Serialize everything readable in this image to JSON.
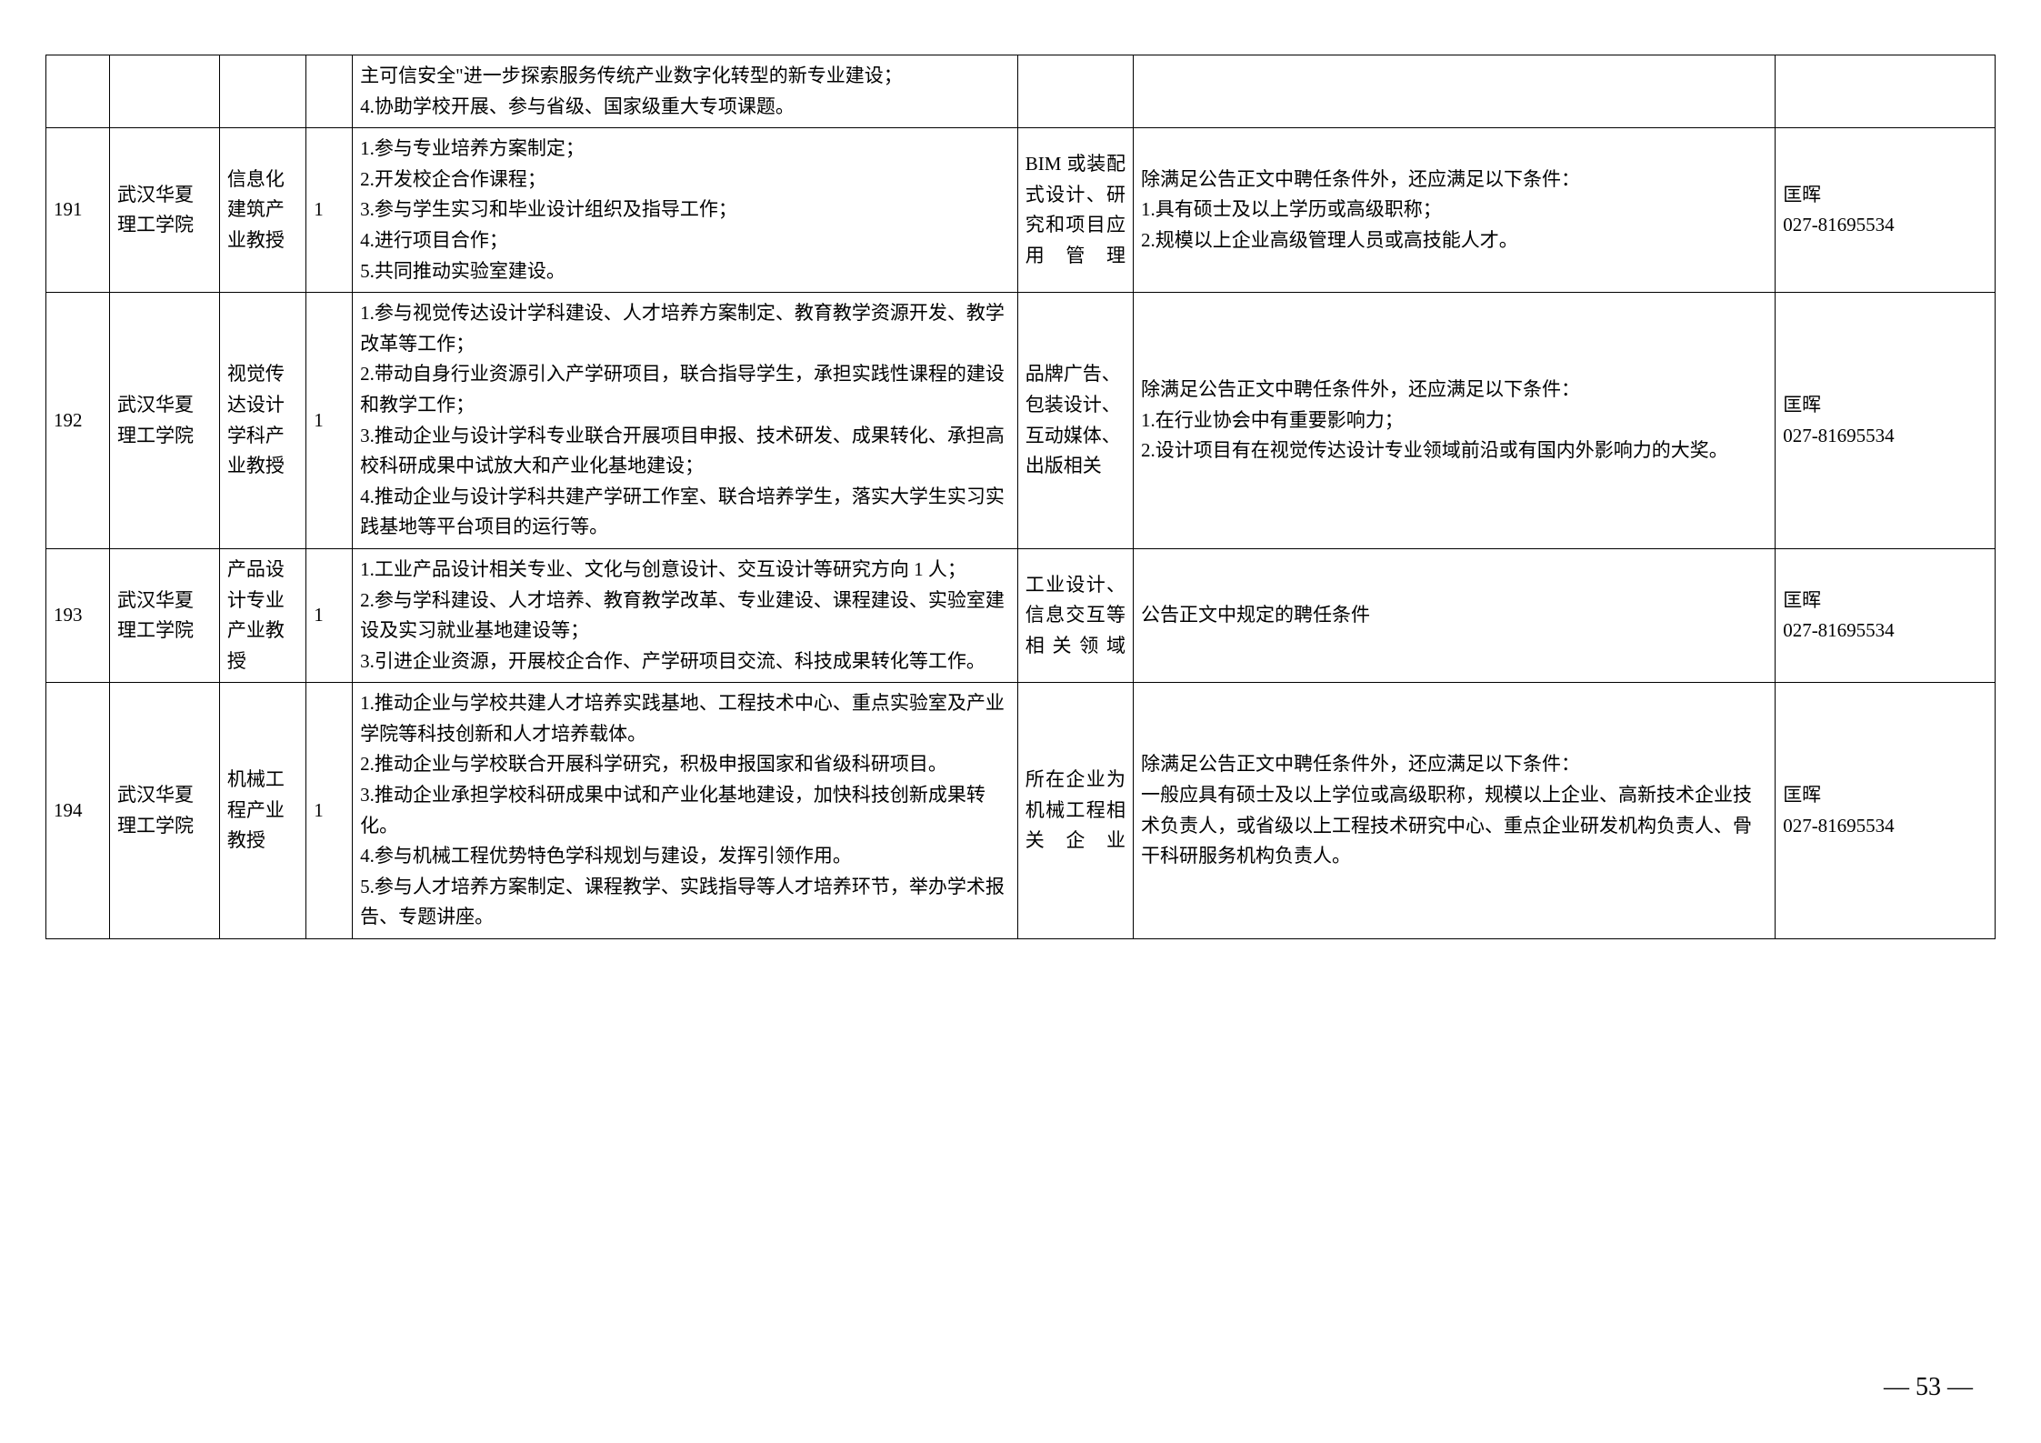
{
  "pageNumber": "— 53 —",
  "rows": [
    {
      "idx": "",
      "school": "",
      "title": "",
      "num": "",
      "duties": "主可信安全\"进一步探索服务传统产业数字化转型的新专业建设；\n4.协助学校开展、参与省级、国家级重大专项课题。",
      "field": "",
      "req": "",
      "contact": ""
    },
    {
      "idx": "191",
      "school": "武汉华夏理工学院",
      "title": "信息化建筑产业教授",
      "num": "1",
      "duties": "1.参与专业培养方案制定；\n2.开发校企合作课程；\n3.参与学生实习和毕业设计组织及指导工作；\n4.进行项目合作；\n5.共同推动实验室建设。",
      "field": "BIM 或装配式设计、研究和项目应用管理",
      "req": "除满足公告正文中聘任条件外，还应满足以下条件：\n1.具有硕士及以上学历或高级职称；\n2.规模以上企业高级管理人员或高技能人才。",
      "contact": "匡晖\n027-81695534"
    },
    {
      "idx": "192",
      "school": "武汉华夏理工学院",
      "title": "视觉传达设计学科产业教授",
      "num": "1",
      "duties": "1.参与视觉传达设计学科建设、人才培养方案制定、教育教学资源开发、教学改革等工作；\n2.带动自身行业资源引入产学研项目，联合指导学生，承担实践性课程的建设和教学工作；\n3.推动企业与设计学科专业联合开展项目申报、技术研发、成果转化、承担高校科研成果中试放大和产业化基地建设；\n4.推动企业与设计学科共建产学研工作室、联合培养学生，落实大学生实习实践基地等平台项目的运行等。",
      "field": "品牌广告、包装设计、互动媒体、出版相关",
      "req": "除满足公告正文中聘任条件外，还应满足以下条件：\n1.在行业协会中有重要影响力；\n2.设计项目有在视觉传达设计专业领域前沿或有国内外影响力的大奖。",
      "contact": "匡晖\n027-81695534"
    },
    {
      "idx": "193",
      "school": "武汉华夏理工学院",
      "title": "产品设计专业产业教授",
      "num": "1",
      "duties": "1.工业产品设计相关专业、文化与创意设计、交互设计等研究方向 1 人；\n2.参与学科建设、人才培养、教育教学改革、专业建设、课程建设、实验室建设及实习就业基地建设等；\n3.引进企业资源，开展校企合作、产学研项目交流、科技成果转化等工作。",
      "field": "工业设计、信息交互等相关领域",
      "req": "公告正文中规定的聘任条件",
      "contact": "匡晖\n027-81695534"
    },
    {
      "idx": "194",
      "school": "武汉华夏理工学院",
      "title": "机械工程产业教授",
      "num": "1",
      "duties": "1.推动企业与学校共建人才培养实践基地、工程技术中心、重点实验室及产业学院等科技创新和人才培养载体。\n2.推动企业与学校联合开展科学研究，积极申报国家和省级科研项目。\n3.推动企业承担学校科研成果中试和产业化基地建设，加快科技创新成果转化。\n4.参与机械工程优势特色学科规划与建设，发挥引领作用。\n5.参与人才培养方案制定、课程教学、实践指导等人才培养环节，举办学术报告、专题讲座。",
      "field": "所在企业为机械工程相关企业",
      "req": "除满足公告正文中聘任条件外，还应满足以下条件：\n一般应具有硕士及以上学位或高级职称，规模以上企业、高新技术企业技术负责人，或省级以上工程技术研究中心、重点企业研发机构负责人、骨干科研服务机构负责人。",
      "contact": "匡晖\n027-81695534"
    }
  ]
}
